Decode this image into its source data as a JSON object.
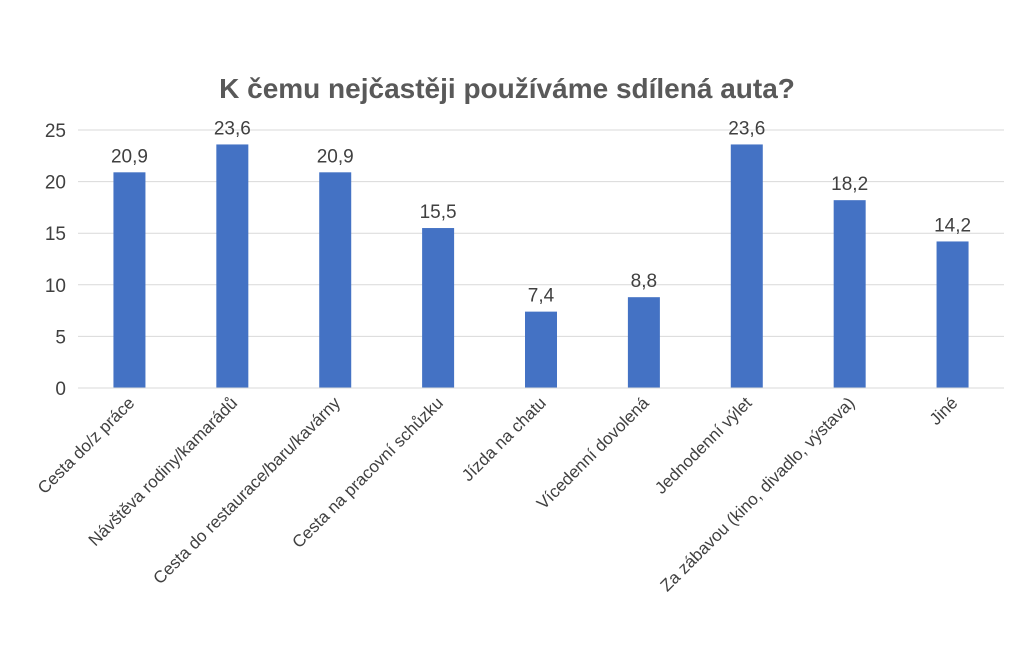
{
  "chart_data": {
    "type": "bar",
    "title": "K čemu nejčastěji používáme sdílená auta?",
    "xlabel": "",
    "ylabel": "",
    "categories": [
      "Cesta do/z práce",
      "Návštěva rodiny/kamarádů",
      "Cesta do restaurace/baru/kavárny",
      "Cesta na pracovní schůzku",
      "Jízda na chatu",
      "Vícedenní dovolená",
      "Jednodenní výlet",
      "Za zábavou (kino, divadlo, výstava)",
      "Jiné"
    ],
    "values": [
      20.9,
      23.6,
      20.9,
      15.5,
      7.4,
      8.8,
      23.6,
      18.2,
      14.2
    ],
    "value_labels": [
      "20,9",
      "23,6",
      "20,9",
      "15,5",
      "7,4",
      "8,8",
      "23,6",
      "18,2",
      "14,2"
    ],
    "ylim": [
      0,
      25
    ],
    "yticks": [
      0,
      5,
      10,
      15,
      20,
      25
    ],
    "grid": true,
    "legend": "none",
    "bar_color": "#4472C4",
    "grid_color": "#D9D9D9",
    "text_color": "#404040",
    "title_color": "#595959"
  }
}
